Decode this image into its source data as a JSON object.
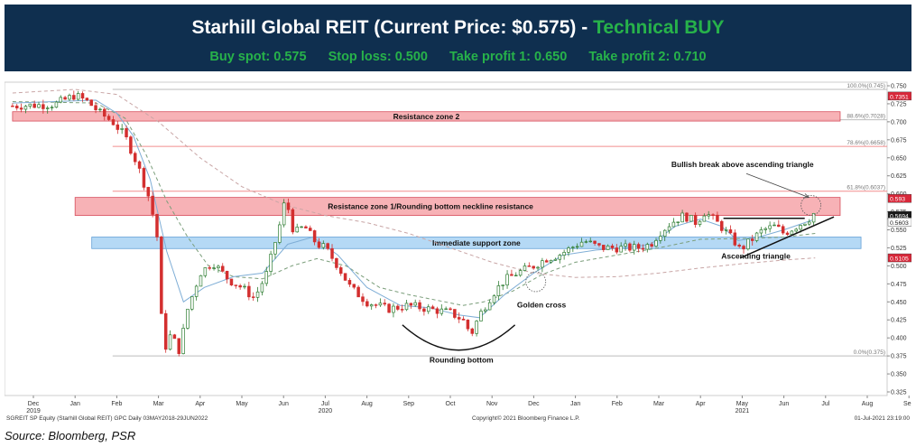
{
  "header": {
    "title_main": "Starhill Global REIT (Current Price: $0.575) -",
    "title_signal": "Technical BUY",
    "buy_spot": "Buy spot: 0.575",
    "stop_loss": "Stop loss: 0.500",
    "take_profit_1": "Take profit 1: 0.650",
    "take_profit_2": "Take profit 2: 0.710",
    "header_bg": "#0f2f4f",
    "signal_color": "#27b24a"
  },
  "source": "Source: Bloomberg, PSR",
  "footer": {
    "left": "SGREIT SP Equity (Starhill Global REIT) GPC  Daily 03MAY2018-29JUN2022",
    "center": "Copyright© 2021 Bloomberg Finance L.P.",
    "right": "01-Jul-2021 23:19:00"
  },
  "chart_data": {
    "type": "candlestick",
    "title": "",
    "ylim": [
      0.32,
      0.755
    ],
    "yticks": [
      "0.750",
      "0.725",
      "0.700",
      "0.675",
      "0.650",
      "0.625",
      "0.600",
      "0.575",
      "0.550",
      "0.525",
      "0.500",
      "0.475",
      "0.450",
      "0.425",
      "0.400",
      "0.375",
      "0.350",
      "0.325"
    ],
    "x_months": [
      "Dec",
      "Jan",
      "Feb",
      "Mar",
      "Apr",
      "May",
      "Jun",
      "Jul",
      "Aug",
      "Sep",
      "Oct",
      "Nov",
      "Dec",
      "Jan",
      "Feb",
      "Mar",
      "Apr",
      "May",
      "Jun",
      "Jul",
      "Aug",
      "Sep"
    ],
    "x_years": [
      {
        "label": "2019",
        "at": 0
      },
      {
        "label": "2020",
        "at": 7
      },
      {
        "label": "2021",
        "at": 17
      }
    ],
    "price_path": [
      [
        -0.5,
        0.722
      ],
      [
        0.0,
        0.723
      ],
      [
        0.5,
        0.724
      ],
      [
        1.0,
        0.737
      ],
      [
        1.3,
        0.728
      ],
      [
        1.6,
        0.712
      ],
      [
        1.9,
        0.7
      ],
      [
        2.2,
        0.68
      ],
      [
        2.5,
        0.64
      ],
      [
        2.8,
        0.59
      ],
      [
        3.0,
        0.53
      ],
      [
        3.05,
        0.44
      ],
      [
        3.15,
        0.385
      ],
      [
        3.3,
        0.405
      ],
      [
        3.5,
        0.382
      ],
      [
        3.7,
        0.44
      ],
      [
        4.0,
        0.49
      ],
      [
        4.3,
        0.505
      ],
      [
        4.7,
        0.48
      ],
      [
        5.0,
        0.47
      ],
      [
        5.3,
        0.455
      ],
      [
        5.6,
        0.49
      ],
      [
        5.9,
        0.555
      ],
      [
        6.05,
        0.595
      ],
      [
        6.25,
        0.545
      ],
      [
        6.5,
        0.555
      ],
      [
        6.8,
        0.53
      ],
      [
        7.0,
        0.525
      ],
      [
        7.3,
        0.5
      ],
      [
        7.6,
        0.47
      ],
      [
        8.0,
        0.45
      ],
      [
        8.5,
        0.44
      ],
      [
        9.0,
        0.445
      ],
      [
        9.5,
        0.44
      ],
      [
        10.0,
        0.435
      ],
      [
        10.3,
        0.425
      ],
      [
        10.5,
        0.405
      ],
      [
        10.7,
        0.432
      ],
      [
        11.0,
        0.46
      ],
      [
        11.3,
        0.48
      ],
      [
        11.6,
        0.49
      ],
      [
        12.0,
        0.5
      ],
      [
        12.3,
        0.51
      ],
      [
        12.6,
        0.515
      ],
      [
        12.9,
        0.525
      ],
      [
        13.2,
        0.535
      ],
      [
        13.6,
        0.525
      ],
      [
        14.0,
        0.525
      ],
      [
        14.5,
        0.525
      ],
      [
        14.8,
        0.53
      ],
      [
        15.0,
        0.545
      ],
      [
        15.3,
        0.56
      ],
      [
        15.6,
        0.57
      ],
      [
        15.9,
        0.56
      ],
      [
        16.1,
        0.575
      ],
      [
        16.4,
        0.56
      ],
      [
        16.6,
        0.548
      ],
      [
        16.8,
        0.535
      ],
      [
        16.95,
        0.522
      ],
      [
        17.2,
        0.535
      ],
      [
        17.5,
        0.55
      ],
      [
        17.8,
        0.555
      ],
      [
        18.0,
        0.545
      ],
      [
        18.3,
        0.555
      ],
      [
        18.6,
        0.565
      ],
      [
        18.75,
        0.575
      ]
    ],
    "moving_averages": [
      {
        "color": "#c9a6a6",
        "dash": "4,3",
        "points": [
          [
            -0.5,
            0.74
          ],
          [
            1.0,
            0.745
          ],
          [
            2.0,
            0.738
          ],
          [
            3.0,
            0.7
          ],
          [
            4.0,
            0.65
          ],
          [
            5.0,
            0.61
          ],
          [
            6.0,
            0.585
          ],
          [
            7.0,
            0.57
          ],
          [
            8.0,
            0.56
          ],
          [
            9.0,
            0.545
          ],
          [
            10.0,
            0.525
          ],
          [
            11.0,
            0.505
          ],
          [
            12.0,
            0.49
          ],
          [
            13.0,
            0.484
          ],
          [
            14.0,
            0.485
          ],
          [
            15.0,
            0.49
          ],
          [
            16.0,
            0.497
          ],
          [
            17.0,
            0.503
          ],
          [
            18.0,
            0.508
          ],
          [
            18.75,
            0.511
          ]
        ]
      },
      {
        "color": "#7b9e7b",
        "dash": "4,3",
        "points": [
          [
            -0.5,
            0.728
          ],
          [
            1.5,
            0.726
          ],
          [
            2.2,
            0.705
          ],
          [
            2.7,
            0.655
          ],
          [
            3.2,
            0.59
          ],
          [
            3.7,
            0.54
          ],
          [
            4.2,
            0.5
          ],
          [
            4.8,
            0.485
          ],
          [
            5.5,
            0.482
          ],
          [
            6.2,
            0.5
          ],
          [
            6.8,
            0.51
          ],
          [
            7.5,
            0.5
          ],
          [
            8.3,
            0.47
          ],
          [
            9.0,
            0.46
          ],
          [
            9.7,
            0.452
          ],
          [
            10.3,
            0.445
          ],
          [
            10.8,
            0.45
          ],
          [
            11.5,
            0.465
          ],
          [
            12.2,
            0.488
          ],
          [
            13.0,
            0.505
          ],
          [
            14.0,
            0.515
          ],
          [
            15.0,
            0.525
          ],
          [
            16.0,
            0.537
          ],
          [
            17.0,
            0.538
          ],
          [
            18.0,
            0.54
          ],
          [
            18.75,
            0.545
          ]
        ]
      },
      {
        "color": "#7faed6",
        "dash": "",
        "points": [
          [
            -0.5,
            0.726
          ],
          [
            1.5,
            0.73
          ],
          [
            2.0,
            0.712
          ],
          [
            2.4,
            0.68
          ],
          [
            2.8,
            0.62
          ],
          [
            3.2,
            0.52
          ],
          [
            3.6,
            0.45
          ],
          [
            4.1,
            0.47
          ],
          [
            4.8,
            0.485
          ],
          [
            5.5,
            0.49
          ],
          [
            6.1,
            0.53
          ],
          [
            6.7,
            0.54
          ],
          [
            7.3,
            0.515
          ],
          [
            8.0,
            0.47
          ],
          [
            8.8,
            0.445
          ],
          [
            9.5,
            0.442
          ],
          [
            10.2,
            0.432
          ],
          [
            10.7,
            0.428
          ],
          [
            11.3,
            0.46
          ],
          [
            12.0,
            0.49
          ],
          [
            12.7,
            0.515
          ],
          [
            13.5,
            0.522
          ],
          [
            14.2,
            0.525
          ],
          [
            14.8,
            0.53
          ],
          [
            15.4,
            0.555
          ],
          [
            16.0,
            0.565
          ],
          [
            16.5,
            0.555
          ],
          [
            16.9,
            0.535
          ],
          [
            17.4,
            0.54
          ],
          [
            18.0,
            0.55
          ],
          [
            18.75,
            0.565
          ]
        ]
      }
    ],
    "hlines": [
      {
        "y": 0.745,
        "label": "100.0%(0.745)",
        "color": "#bbbbbb",
        "x0": 1.9
      },
      {
        "y": 0.7028,
        "label": "88.6%(0.7028)",
        "color": "#bbbbbb",
        "x0": 3.0
      },
      {
        "y": 0.6658,
        "label": "78.6%(0.6658)",
        "color": "#f28d8d",
        "x0": 1.9
      },
      {
        "y": 0.6037,
        "label": "61.8%(0.6037)",
        "color": "#f28d8d",
        "x0": 1.9
      },
      {
        "y": 0.375,
        "label": "0.0%(0.375)",
        "color": "#bbbbbb",
        "x0": 1.9
      }
    ],
    "zones": [
      {
        "label": "Resistance zone 2",
        "y0": 0.701,
        "y1": 0.714,
        "x0": -0.5,
        "x1": 19.35,
        "fill": "#f6a5aa",
        "stroke": "#d03040"
      },
      {
        "label": "Resistance zone 1/Rounding bottom neckline resistance",
        "y0": 0.57,
        "y1": 0.595,
        "x0": 1.0,
        "x1": 19.35,
        "fill": "#f6a5aa",
        "stroke": "#d03040"
      },
      {
        "label": "Immediate support zone",
        "y0": 0.524,
        "y1": 0.54,
        "x0": 1.4,
        "x1": 19.85,
        "fill": "#a9d3f4",
        "stroke": "#4a90d0"
      }
    ],
    "price_labels": [
      {
        "value": "0.7351",
        "y": 0.7351,
        "bg": "#d8283a",
        "fg": "#ffffff"
      },
      {
        "value": "0.593",
        "y": 0.593,
        "bg": "#d8283a",
        "fg": "#ffffff"
      },
      {
        "value": "0.5694",
        "y": 0.5694,
        "bg": "#1a1a1a",
        "fg": "#ffffff"
      },
      {
        "value": "0.5603",
        "y": 0.5603,
        "bg": "#ffffff",
        "fg": "#1a1a1a"
      },
      {
        "value": "0.5105",
        "y": 0.5105,
        "bg": "#d8283a",
        "fg": "#ffffff"
      }
    ],
    "annotations": [
      {
        "text": "Bullish break above ascending triangle",
        "x": 15.3,
        "y": 0.637
      },
      {
        "text": "Ascending triangle",
        "x": 16.5,
        "y": 0.51
      },
      {
        "text": "Golden cross",
        "x": 11.6,
        "y": 0.442
      },
      {
        "text": "Rounding bottom",
        "x": 9.5,
        "y": 0.366
      }
    ],
    "triangle": {
      "top": [
        [
          16.55,
          0.566
        ],
        [
          18.5,
          0.566
        ]
      ],
      "bottom": [
        [
          16.95,
          0.511
        ],
        [
          19.2,
          0.568
        ]
      ]
    },
    "arrow": {
      "from": [
        17.1,
        0.628
      ],
      "to": [
        18.6,
        0.595
      ]
    },
    "circles": [
      {
        "x": 18.65,
        "y": 0.584,
        "rx": 11,
        "ry": 11
      },
      {
        "x": 12.05,
        "y": 0.478,
        "rx": 11,
        "ry": 11
      }
    ],
    "rounding_arc": {
      "x0": 8.85,
      "x1": 11.55,
      "ybottom": 0.383,
      "ytop": 0.418
    },
    "colors": {
      "up": "#2e7d32",
      "down": "#d32f2f"
    }
  }
}
